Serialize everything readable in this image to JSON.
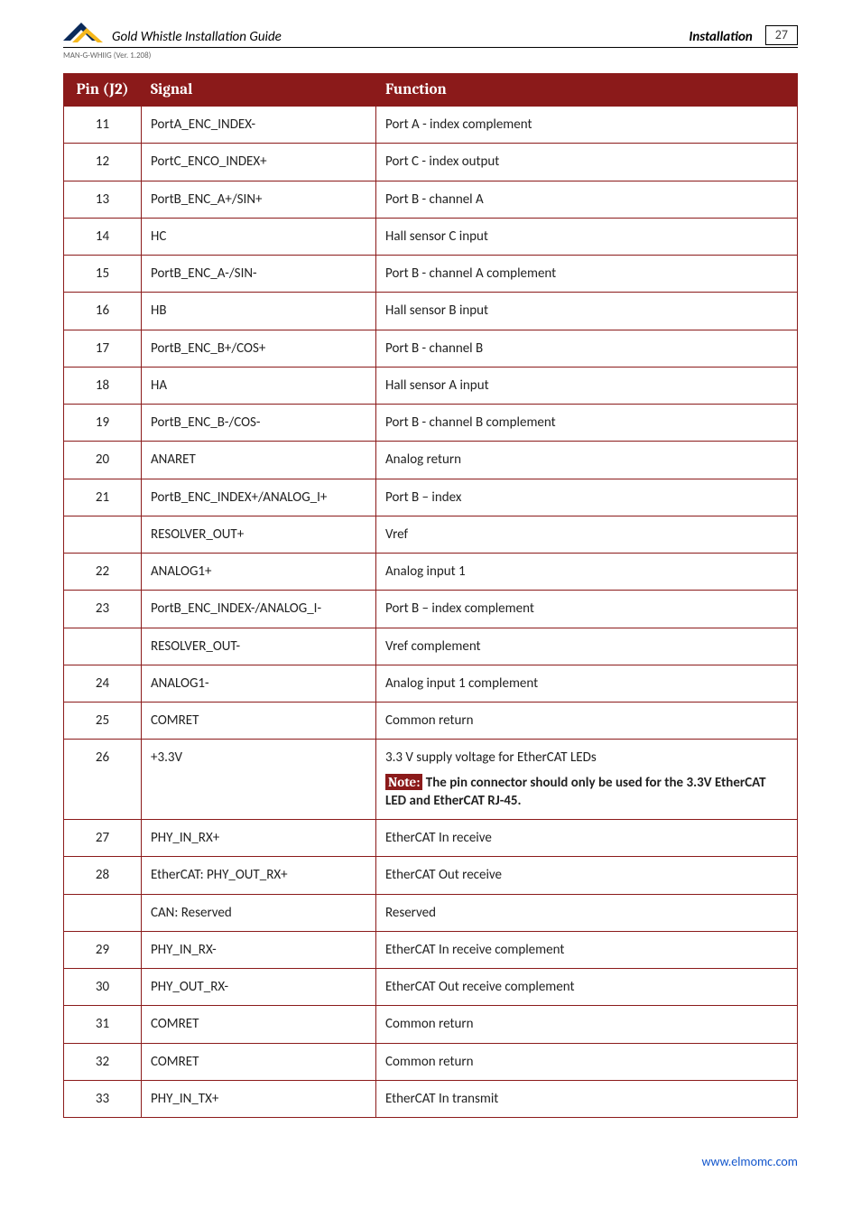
{
  "header": {
    "doc_title": "Gold Whistle Installation Guide",
    "section": "Installation",
    "page_number": "27",
    "version": "MAN-G-WHIIG (Ver. 1.208)"
  },
  "colors": {
    "header_bg": "#8b1a1a",
    "header_fg": "#ffffff",
    "border": "#8b1a1a",
    "text": "#222222",
    "link": "#1155cc",
    "logo_yellow": "#f6b81c",
    "logo_blue": "#0a2a5a"
  },
  "table": {
    "headers": {
      "pin": "Pin (J2)",
      "signal": "Signal",
      "function": "Function"
    },
    "rows": [
      {
        "pin": "11",
        "signal": "PortA_ENC_INDEX-",
        "function": "Port A - index complement"
      },
      {
        "pin": "12",
        "signal": "PortC_ENCO_INDEX+",
        "function": "Port C - index output"
      },
      {
        "pin": "13",
        "signal": "PortB_ENC_A+/SIN+",
        "function": "Port B - channel A"
      },
      {
        "pin": "14",
        "signal": "HC",
        "function": "Hall sensor C input"
      },
      {
        "pin": "15",
        "signal": "PortB_ENC_A-/SIN-",
        "function": "Port B - channel A complement"
      },
      {
        "pin": "16",
        "signal": "HB",
        "function": "Hall sensor B input"
      },
      {
        "pin": "17",
        "signal": "PortB_ENC_B+/COS+",
        "function": "Port B - channel B"
      },
      {
        "pin": "18",
        "signal": "HA",
        "function": "Hall sensor A input"
      },
      {
        "pin": "19",
        "signal": "PortB_ENC_B-/COS-",
        "function": "Port B - channel B complement"
      },
      {
        "pin": "20",
        "signal": "ANARET",
        "function": "Analog return"
      },
      {
        "pin": "21",
        "signal": "PortB_ENC_INDEX+/ANALOG_I+",
        "function": "Port B – index",
        "merge_down_pin": true
      },
      {
        "pin": "",
        "signal": "RESOLVER_OUT+",
        "function": "Vref",
        "merged_pin": true
      },
      {
        "pin": "22",
        "signal": "ANALOG1+",
        "function": "Analog input 1"
      },
      {
        "pin": "23",
        "signal": "PortB_ENC_INDEX-/ANALOG_I-",
        "function": "Port B – index complement",
        "merge_down_pin": true
      },
      {
        "pin": "",
        "signal": "RESOLVER_OUT-",
        "function": "Vref complement",
        "merged_pin": true
      },
      {
        "pin": "24",
        "signal": "ANALOG1-",
        "function": "Analog input 1 complement"
      },
      {
        "pin": "25",
        "signal": "COMRET",
        "function": "Common return"
      },
      {
        "pin": "26",
        "signal": "+3.3V",
        "function_rich": true,
        "function_line1": "3.3 V supply voltage for EtherCAT LEDs",
        "note_label": "Note:",
        "note_text": " The pin connector should only be used for the 3.3V EtherCAT LED and EtherCAT RJ-45."
      },
      {
        "pin": "27",
        "signal": "PHY_IN_RX+",
        "function": "EtherCAT In receive"
      },
      {
        "pin": "28",
        "signal": "EtherCAT: PHY_OUT_RX+",
        "function": "EtherCAT Out receive",
        "merge_down_pin": true
      },
      {
        "pin": "",
        "signal": "CAN: Reserved",
        "function": "Reserved",
        "merged_pin": true
      },
      {
        "pin": "29",
        "signal": "PHY_IN_RX-",
        "function": "EtherCAT In receive complement"
      },
      {
        "pin": "30",
        "signal": "PHY_OUT_RX-",
        "function": "EtherCAT Out receive complement"
      },
      {
        "pin": "31",
        "signal": "COMRET",
        "function": "Common return"
      },
      {
        "pin": "32",
        "signal": "COMRET",
        "function": "Common return"
      },
      {
        "pin": "33",
        "signal": "PHY_IN_TX+",
        "function": "EtherCAT In transmit"
      }
    ]
  },
  "footer": {
    "link_text": "www.elmomc.com"
  }
}
